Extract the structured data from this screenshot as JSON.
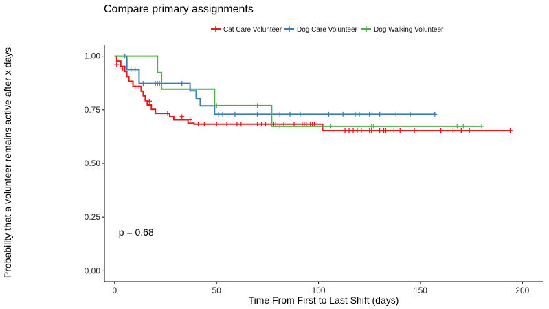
{
  "chart_data": {
    "type": "line",
    "subtype": "kaplan-meier step survival curve",
    "title": "Compare primary assignments",
    "xlabel": "Time From First to Last Shift (days)",
    "ylabel": "Probability that a volunteer remains active after x days",
    "xlim": [
      -5,
      210
    ],
    "ylim": [
      -0.05,
      1.05
    ],
    "x_ticks": [
      0,
      50,
      100,
      150,
      200
    ],
    "x_tick_labels": [
      "0",
      "50",
      "100",
      "150",
      "200"
    ],
    "y_ticks": [
      0,
      0.25,
      0.5,
      0.75,
      1.0
    ],
    "y_tick_labels": [
      "0.00",
      "0.25",
      "0.50",
      "0.75",
      "1.00"
    ],
    "grid": false,
    "legend_position": "top",
    "annotation": "p = 0.68",
    "series": [
      {
        "name": "Cat Care Volunteer",
        "color": "#e41a1c",
        "steps": [
          [
            0,
            1.0
          ],
          [
            1,
            0.976
          ],
          [
            3,
            0.952
          ],
          [
            5,
            0.928
          ],
          [
            6,
            0.905
          ],
          [
            7,
            0.882
          ],
          [
            9,
            0.858
          ],
          [
            13,
            0.836
          ],
          [
            14,
            0.814
          ],
          [
            15,
            0.792
          ],
          [
            16,
            0.772
          ],
          [
            18,
            0.752
          ],
          [
            20,
            0.733
          ],
          [
            27,
            0.718
          ],
          [
            29,
            0.703
          ],
          [
            36,
            0.688
          ],
          [
            39,
            0.683
          ],
          [
            102,
            0.653
          ],
          [
            194,
            0.653
          ]
        ],
        "censored": [
          [
            1,
            0.96
          ],
          [
            4,
            0.94
          ],
          [
            8,
            0.88
          ],
          [
            10,
            0.86
          ],
          [
            12,
            0.86
          ],
          [
            17,
            0.79
          ],
          [
            26,
            0.733
          ],
          [
            33,
            0.718
          ],
          [
            37,
            0.703
          ],
          [
            41,
            0.683
          ],
          [
            44,
            0.683
          ],
          [
            50,
            0.683
          ],
          [
            55,
            0.683
          ],
          [
            60,
            0.683
          ],
          [
            62,
            0.683
          ],
          [
            70,
            0.683
          ],
          [
            72,
            0.683
          ],
          [
            74,
            0.683
          ],
          [
            78,
            0.683
          ],
          [
            79,
            0.683
          ],
          [
            83,
            0.683
          ],
          [
            88,
            0.683
          ],
          [
            92,
            0.683
          ],
          [
            93,
            0.683
          ],
          [
            94,
            0.683
          ],
          [
            96,
            0.683
          ],
          [
            97,
            0.683
          ],
          [
            98,
            0.683
          ],
          [
            113,
            0.653
          ],
          [
            115,
            0.653
          ],
          [
            117,
            0.653
          ],
          [
            119,
            0.653
          ],
          [
            121,
            0.653
          ],
          [
            125,
            0.653
          ],
          [
            126,
            0.653
          ],
          [
            130,
            0.653
          ],
          [
            132,
            0.653
          ],
          [
            133,
            0.653
          ],
          [
            137,
            0.653
          ],
          [
            140,
            0.653
          ],
          [
            147,
            0.653
          ],
          [
            160,
            0.653
          ],
          [
            166,
            0.653
          ],
          [
            170,
            0.653
          ],
          [
            174,
            0.653
          ],
          [
            194,
            0.653
          ]
        ]
      },
      {
        "name": "Dog Care Volunteer",
        "color": "#377eb8",
        "steps": [
          [
            0,
            1.0
          ],
          [
            6,
            0.937
          ],
          [
            12,
            0.872
          ],
          [
            37,
            0.838
          ],
          [
            40,
            0.803
          ],
          [
            42,
            0.768
          ],
          [
            49,
            0.729
          ],
          [
            157,
            0.729
          ]
        ],
        "censored": [
          [
            5,
            1.0
          ],
          [
            8,
            0.937
          ],
          [
            10,
            0.937
          ],
          [
            14,
            0.872
          ],
          [
            20,
            0.872
          ],
          [
            21,
            0.872
          ],
          [
            22,
            0.872
          ],
          [
            33,
            0.872
          ],
          [
            51,
            0.729
          ],
          [
            53,
            0.729
          ],
          [
            59,
            0.729
          ],
          [
            70,
            0.729
          ],
          [
            81,
            0.729
          ],
          [
            86,
            0.729
          ],
          [
            91,
            0.729
          ],
          [
            105,
            0.729
          ],
          [
            112,
            0.729
          ],
          [
            118,
            0.729
          ],
          [
            120,
            0.729
          ],
          [
            125,
            0.729
          ],
          [
            130,
            0.729
          ],
          [
            138,
            0.729
          ],
          [
            145,
            0.729
          ],
          [
            157,
            0.729
          ]
        ]
      },
      {
        "name": "Dog Walking Volunteer",
        "color": "#4daf4a",
        "steps": [
          [
            0,
            1.0
          ],
          [
            21,
            0.923
          ],
          [
            23,
            0.846
          ],
          [
            49,
            0.769
          ],
          [
            77,
            0.673
          ],
          [
            180,
            0.673
          ]
        ],
        "censored": [
          [
            50,
            0.769
          ],
          [
            70,
            0.769
          ],
          [
            81,
            0.673
          ],
          [
            106,
            0.673
          ],
          [
            126,
            0.673
          ],
          [
            127,
            0.673
          ],
          [
            168,
            0.673
          ],
          [
            171,
            0.673
          ],
          [
            180,
            0.673
          ]
        ]
      }
    ]
  }
}
